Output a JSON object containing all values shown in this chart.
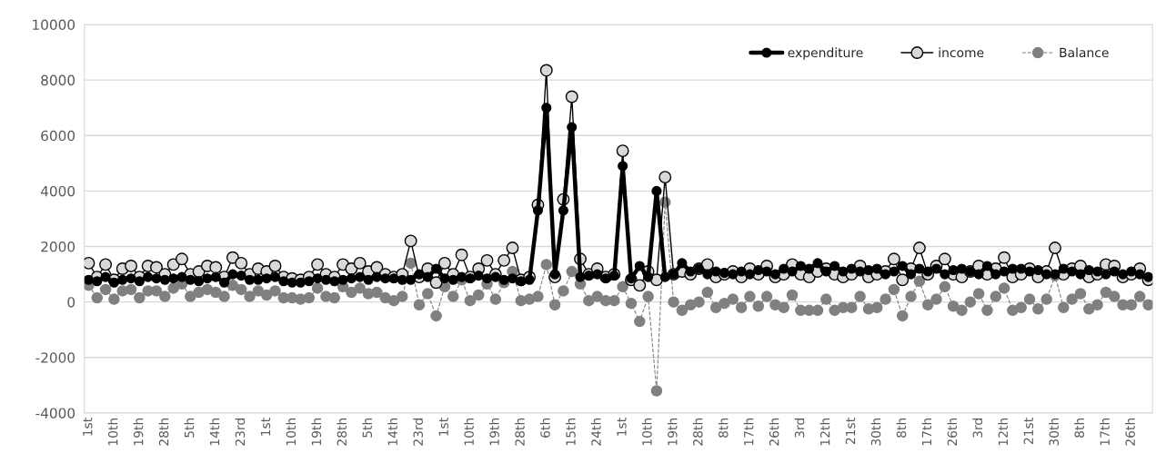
{
  "chart_data": {
    "type": "line",
    "categories": [
      "1st",
      null,
      null,
      "10th",
      null,
      null,
      "19th",
      null,
      null,
      "28th",
      null,
      null,
      "5th",
      null,
      null,
      "14th",
      null,
      null,
      "23rd",
      null,
      null,
      "1st",
      null,
      null,
      "10th",
      null,
      null,
      "19th",
      null,
      null,
      "28th",
      null,
      null,
      "5th",
      null,
      null,
      "14th",
      null,
      null,
      "23rd",
      null,
      null,
      "1st",
      null,
      null,
      "10th",
      null,
      null,
      "19th",
      null,
      null,
      "28th",
      null,
      null,
      "6th",
      null,
      null,
      "15th",
      null,
      null,
      "24th",
      null,
      null,
      "1st",
      null,
      null,
      "10th",
      null,
      null,
      "19th",
      null,
      null,
      "28th",
      null,
      null,
      "8th",
      null,
      null,
      "17th",
      null,
      null,
      "26th",
      null,
      null,
      "3rd",
      null,
      null,
      "12th",
      null,
      null,
      "21st",
      null,
      null,
      "30th",
      null,
      null,
      "8th",
      null,
      null,
      "17th",
      null,
      null,
      "26th",
      null,
      null,
      "3rd",
      null,
      null,
      "12th",
      null,
      null,
      "21st",
      null,
      null,
      "30th",
      null,
      null,
      "8th",
      null,
      null,
      "17th",
      null,
      null,
      "26th",
      null,
      null
    ],
    "series": [
      {
        "name": "expenditure",
        "color": "#000000",
        "line_style": "solid",
        "values": [
          800,
          750,
          900,
          700,
          800,
          850,
          750,
          900,
          850,
          800,
          850,
          900,
          800,
          750,
          850,
          900,
          700,
          1000,
          950,
          800,
          800,
          850,
          900,
          750,
          700,
          700,
          750,
          850,
          800,
          750,
          800,
          850,
          900,
          800,
          900,
          850,
          850,
          800,
          800,
          1000,
          900,
          1200,
          850,
          800,
          900,
          850,
          950,
          850,
          900,
          800,
          850,
          750,
          800,
          3300,
          7000,
          1000,
          3300,
          6300,
          900,
          950,
          1000,
          850,
          950,
          4900,
          850,
          1300,
          900,
          4000,
          900,
          1000,
          1400,
          1100,
          1200,
          1000,
          1100,
          1050,
          1000,
          1100,
          1000,
          1150,
          1100,
          1000,
          1200,
          1100,
          1300,
          1200,
          1400,
          1100,
          1300,
          1100,
          1200,
          1100,
          1150,
          1200,
          1000,
          1100,
          1300,
          1000,
          1200,
          1100,
          1200,
          1000,
          1150,
          1200,
          1100,
          1000,
          1300,
          1000,
          1100,
          1200,
          1200,
          1100,
          1150,
          1000,
          1000,
          1200,
          1100,
          1000,
          1150,
          1100,
          1000,
          1100,
          1000,
          1100,
          1000,
          900
        ]
      },
      {
        "name": "income",
        "color": "#d9d9d9",
        "line_style": "solid",
        "values": [
          1400,
          900,
          1350,
          800,
          1200,
          1300,
          900,
          1300,
          1250,
          1000,
          1350,
          1550,
          1000,
          1100,
          1300,
          1250,
          900,
          1600,
          1400,
          1000,
          1200,
          1100,
          1300,
          900,
          850,
          800,
          900,
          1350,
          1000,
          900,
          1350,
          1200,
          1400,
          1100,
          1250,
          1000,
          900,
          1000,
          2200,
          900,
          1200,
          700,
          1400,
          1000,
          1700,
          900,
          1200,
          1500,
          1000,
          1500,
          1950,
          800,
          900,
          3500,
          8350,
          900,
          3700,
          7400,
          1550,
          1000,
          1200,
          900,
          1000,
          5450,
          800,
          600,
          1100,
          800,
          4500,
          1000,
          1100,
          1000,
          1200,
          1350,
          900,
          1000,
          1100,
          900,
          1200,
          1000,
          1300,
          900,
          1000,
          1350,
          1000,
          900,
          1100,
          1200,
          1000,
          900,
          1000,
          1300,
          900,
          1000,
          1100,
          1550,
          800,
          1200,
          1950,
          1000,
          1300,
          1550,
          1000,
          900,
          1100,
          1300,
          1000,
          1200,
          1600,
          900,
          1000,
          1200,
          900,
          1100,
          1950,
          1000,
          1200,
          1300,
          900,
          1000,
          1350,
          1300,
          900,
          1000,
          1200,
          800
        ]
      },
      {
        "name": "Balance",
        "color": "#808080",
        "line_style": "dashed",
        "values": [
          600,
          150,
          450,
          100,
          400,
          450,
          150,
          400,
          400,
          200,
          500,
          650,
          200,
          350,
          450,
          350,
          200,
          600,
          450,
          200,
          400,
          250,
          400,
          150,
          150,
          100,
          150,
          500,
          200,
          150,
          550,
          350,
          500,
          300,
          350,
          150,
          50,
          200,
          1400,
          -100,
          300,
          -500,
          550,
          200,
          800,
          50,
          250,
          650,
          100,
          700,
          1100,
          50,
          100,
          200,
          1350,
          -100,
          400,
          1100,
          650,
          50,
          200,
          50,
          50,
          550,
          -50,
          -700,
          200,
          -3200,
          3600,
          0,
          -300,
          -100,
          0,
          350,
          -200,
          -50,
          100,
          -200,
          200,
          -150,
          200,
          -100,
          -200,
          250,
          -300,
          -300,
          -300,
          100,
          -300,
          -200,
          -200,
          200,
          -250,
          -200,
          100,
          450,
          -500,
          200,
          750,
          -100,
          100,
          550,
          -150,
          -300,
          0,
          300,
          -300,
          200,
          500,
          -300,
          -200,
          100,
          -250,
          100,
          950,
          -200,
          100,
          300,
          -250,
          -100,
          350,
          200,
          -100,
          -100,
          200,
          -100
        ]
      }
    ],
    "ylim": [
      -4000,
      10000
    ],
    "yticks": [
      -4000,
      -2000,
      0,
      2000,
      4000,
      6000,
      8000,
      10000
    ],
    "grid": "y",
    "legend": "top right",
    "marker": "circle"
  }
}
